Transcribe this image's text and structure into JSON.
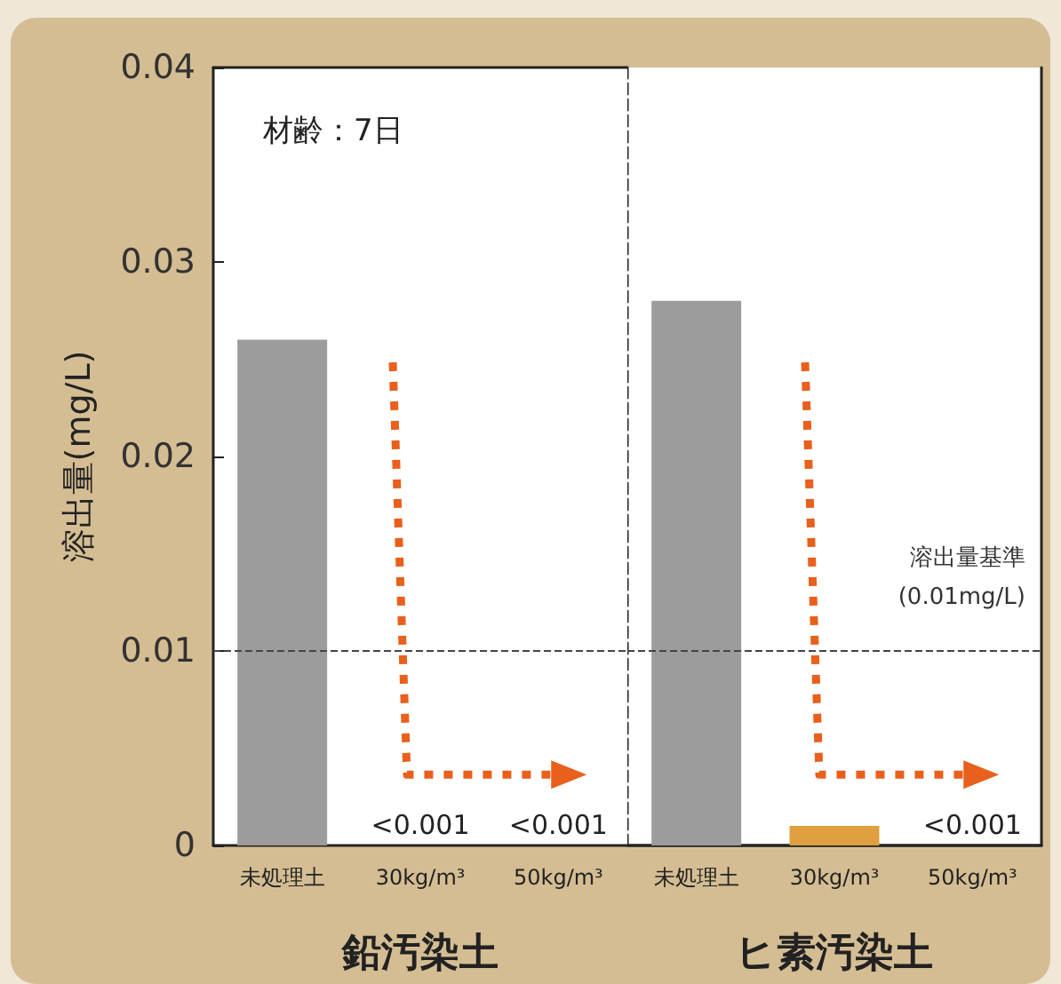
{
  "chart_data": [
    {
      "type": "bar",
      "ylabel": "溶出量(mg/L)",
      "xlabel": "鉛汚染土",
      "categories": [
        "未処理土",
        "30kg/m³",
        "50kg/m³"
      ],
      "values": [
        0.026,
        null,
        null
      ],
      "colors": [
        "#9c9c9c",
        "#9c9c9c",
        "#9c9c9c"
      ],
      "value_labels": [
        null,
        "<0.001",
        "<0.001"
      ],
      "ylim": [
        0,
        0.04
      ],
      "yticks": [
        0,
        0.01,
        0.02,
        0.03,
        0.04
      ],
      "grid": false,
      "ref_lines": [
        {
          "axis": "y",
          "value": 0.01,
          "label": null,
          "line_style": "dashed",
          "color": "#444444"
        }
      ],
      "annotations": [
        "材齢：7日"
      ]
    },
    {
      "type": "bar",
      "xlabel": "ヒ素汚染土",
      "categories": [
        "未処理土",
        "30kg/m³",
        "50kg/m³"
      ],
      "values": [
        0.028,
        0.001,
        null
      ],
      "colors": [
        "#9c9c9c",
        "#e0a040",
        "#e0a040"
      ],
      "value_labels": [
        null,
        null,
        "<0.001"
      ],
      "ylim": [
        0,
        0.04
      ],
      "yticks": [
        0,
        0.01,
        0.02,
        0.03,
        0.04
      ],
      "grid": false,
      "tick_labels": "x",
      "ref_lines": [
        {
          "axis": "y",
          "value": 0.01,
          "label": "溶出量基準\n(0.01mg/L)",
          "line_style": "dashed",
          "color": "#444444"
        }
      ]
    }
  ]
}
